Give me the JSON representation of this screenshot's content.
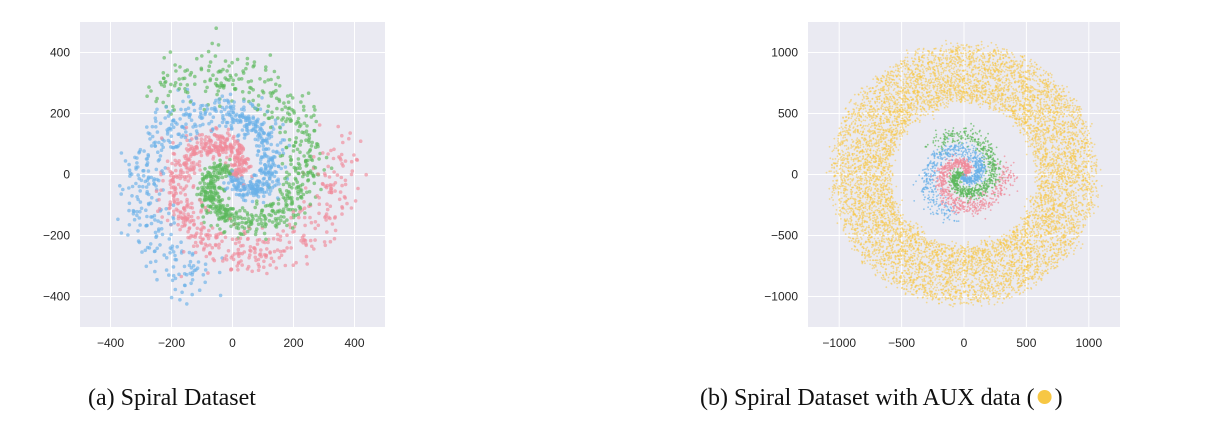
{
  "colors": {
    "panel_bg": "#eaeaf2",
    "grid": "#ffffff",
    "class_red": "#f08a9a",
    "class_green": "#5cb85c",
    "class_blue": "#6ab0e8",
    "aux": "#f7c744"
  },
  "chart_data": [
    {
      "type": "scatter",
      "title": "",
      "xlabel": "",
      "ylabel": "",
      "xlim": [
        -500,
        500
      ],
      "ylim": [
        -500,
        500
      ],
      "xticks": [
        -400,
        -200,
        0,
        200,
        400
      ],
      "yticks": [
        -400,
        -200,
        0,
        200,
        400
      ],
      "grid": true,
      "series": [
        {
          "color_key": "class_red",
          "points": "three-arm spiral arm 1, radius 0 to ~360"
        },
        {
          "color_key": "class_green",
          "points": "three-arm spiral arm 2, radius 0 to ~360"
        },
        {
          "color_key": "class_blue",
          "points": "three-arm spiral arm 3, radius 0 to ~360"
        }
      ],
      "caption": "(a) Spiral Dataset"
    },
    {
      "type": "scatter",
      "title": "",
      "xlabel": "",
      "ylabel": "",
      "xlim": [
        -1250,
        1250
      ],
      "ylim": [
        -1250,
        1250
      ],
      "xticks": [
        -1000,
        -500,
        0,
        500,
        1000
      ],
      "yticks": [
        -1000,
        -500,
        0,
        500,
        1000
      ],
      "grid": true,
      "series": [
        {
          "color_key": "aux",
          "points": "annulus, radius ~600 to ~1050"
        },
        {
          "color_key": "class_red",
          "points": "three-arm spiral arm 1, radius 0 to ~360"
        },
        {
          "color_key": "class_green",
          "points": "three-arm spiral arm 2, radius 0 to ~360"
        },
        {
          "color_key": "class_blue",
          "points": "three-arm spiral arm 3, radius 0 to ~360"
        }
      ],
      "caption_prefix": "(b) Spiral Dataset with AUX data (",
      "caption_suffix": ")"
    }
  ]
}
